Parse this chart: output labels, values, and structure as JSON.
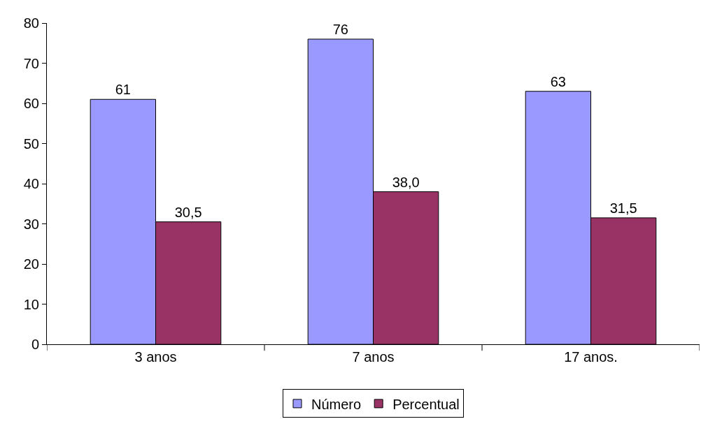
{
  "chart_data": {
    "type": "bar",
    "categories": [
      "3 anos",
      "7 anos",
      "17 anos."
    ],
    "series": [
      {
        "name": "Número",
        "color": "#9999ff",
        "values": [
          61,
          76,
          63
        ],
        "value_labels": [
          "61",
          "76",
          "63"
        ]
      },
      {
        "name": "Percentual",
        "color": "#993366",
        "values": [
          30.5,
          38.0,
          31.5
        ],
        "value_labels": [
          "30,5",
          "38,0",
          "31,5"
        ]
      }
    ],
    "ylim": [
      0,
      80
    ],
    "yticks": [
      0,
      10,
      20,
      30,
      40,
      50,
      60,
      70,
      80
    ],
    "grid": false,
    "legend": "bottom"
  }
}
